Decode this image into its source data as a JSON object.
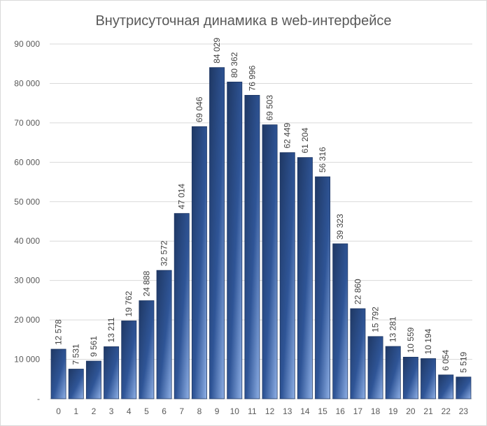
{
  "chart_data": {
    "type": "bar",
    "title": "Внутрисуточная динамика в web-интерфейсе",
    "xlabel": "",
    "ylabel": "",
    "categories": [
      "0",
      "1",
      "2",
      "3",
      "4",
      "5",
      "6",
      "7",
      "8",
      "9",
      "10",
      "11",
      "12",
      "13",
      "14",
      "15",
      "16",
      "17",
      "18",
      "19",
      "20",
      "21",
      "22",
      "23"
    ],
    "values": [
      12578,
      7531,
      9561,
      13211,
      19762,
      24888,
      32572,
      47014,
      69046,
      84029,
      80362,
      76996,
      69503,
      62449,
      61204,
      56316,
      39323,
      22860,
      15792,
      13281,
      10559,
      10194,
      6054,
      5519
    ],
    "data_labels": [
      "12 578",
      "7 531",
      "9 561",
      "13 211",
      "19 762",
      "24 888",
      "32 572",
      "47 014",
      "69 046",
      "84 029",
      "80 362",
      "76 996",
      "69 503",
      "62 449",
      "61 204",
      "56 316",
      "39 323",
      "22 860",
      "15 792",
      "13 281",
      "10 559",
      "10 194",
      "6 054",
      "5 519"
    ],
    "ylim": [
      0,
      90000
    ],
    "y_ticks": [
      0,
      10000,
      20000,
      30000,
      40000,
      50000,
      60000,
      70000,
      80000,
      90000
    ],
    "y_tick_labels": [
      "-",
      "10 000",
      "20 000",
      "30 000",
      "40 000",
      "50 000",
      "60 000",
      "70 000",
      "80 000",
      "90 000"
    ],
    "grid": true,
    "legend": "none",
    "colors": {
      "bar_dark": "#1f3864",
      "bar_mid": "#2f5597",
      "bar_light": "#8fb0e6",
      "gridline": "#d9d9d9",
      "text": "#595959"
    }
  }
}
